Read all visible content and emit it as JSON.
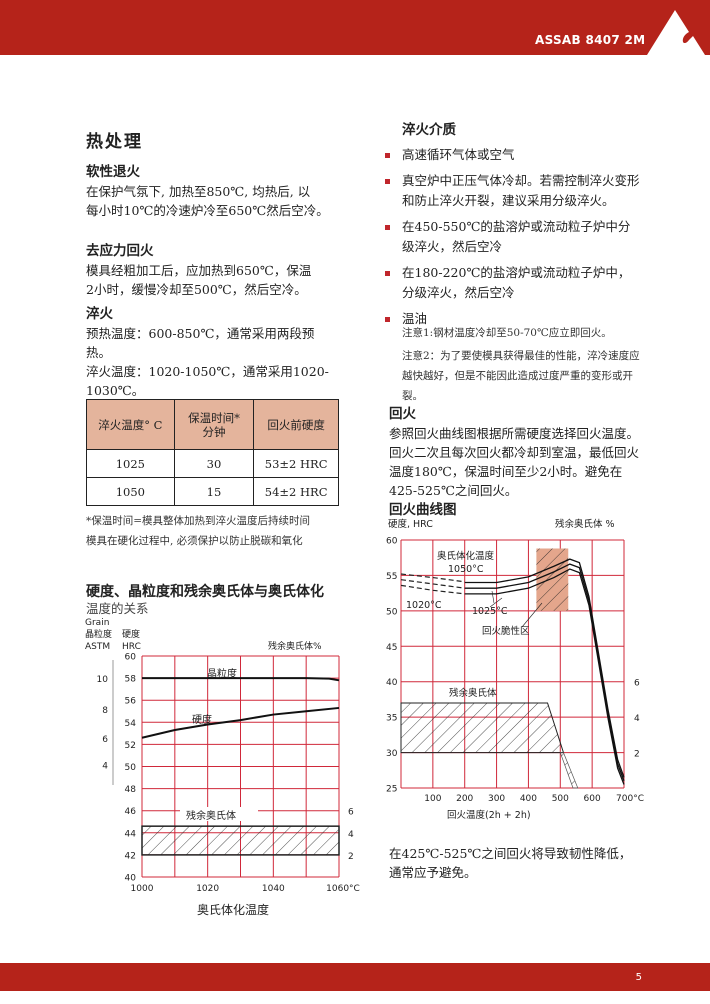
{
  "header": {
    "brand": "ASSAB 8407 2M",
    "accent": "#b5231a"
  },
  "footer": {
    "page_number": "5"
  },
  "left": {
    "title": "热处理",
    "sections": [
      {
        "heading": "软性退火",
        "lines": [
          "在保护气氛下, 加热至850℃, 均热后, 以",
          "每小时10℃的冷速炉冷至650℃然后空冷。"
        ]
      },
      {
        "heading": "去应力回火",
        "lines": [
          "模具经粗加工后，应加热到650℃，保温",
          "2小时，缓慢冷却至500℃，然后空冷。"
        ]
      },
      {
        "heading": "淬火",
        "lines": [
          "预热温度：600-850℃，通常采用两段预",
          "热。",
          "淬火温度：1020-1050℃，通常采用1020-",
          "1030℃。"
        ]
      }
    ],
    "table": {
      "headers": [
        "淬火温度° C",
        "保温时间*\n分钟",
        "回火前硬度"
      ],
      "rows": [
        [
          "1025",
          "30",
          "53±2 HRC"
        ],
        [
          "1050",
          "15",
          "54±2 HRC"
        ]
      ]
    },
    "footnotes": [
      "*保温时间=模具整体加热到淬火温度后持续时间",
      "模具在硬化过程中, 必须保护以防止脱碳和氧化"
    ],
    "chart_title": [
      "硬度、晶粒度和残余奥氏体与奥氏体化",
      "温度的关系"
    ]
  },
  "right": {
    "media_heading": "淬火介质",
    "media": [
      "高速循环气体或空气",
      "真空炉中正压气体冷却。若需控制淬火变形和防止淬火开裂，建议采用分级淬火。",
      "在450-550℃的盐溶炉或流动粒子炉中分级淬火，然后空冷",
      "在180-220℃的盐溶炉或流动粒子炉中，分级淬火，然后空冷",
      "温油"
    ],
    "notes": [
      "注意1:钢材温度冷却至50-70℃应立即回火。",
      "注意2：为了要使模具获得最佳的性能，淬冷速度应越快越好，但是不能因此造成过度严重的变形或开裂。"
    ],
    "tempering_heading": "回火",
    "tempering_text": "参照回火曲线图根据所需硬度选择回火温度。回火二次且每次回火都冷却到室温，最低回火温度180℃，保温时间至少2小时。避免在425-525℃之间回火。",
    "chart_heading": "回火曲线图",
    "bottom_text": "在425℃-525℃之间回火将导致韧性降低，通常应予避免。"
  },
  "chart_data": [
    {
      "type": "line",
      "xlabel": "奥氏体化温度",
      "xlim": [
        1000,
        1060
      ],
      "x_ticks": [
        "1000",
        "1020",
        "1040",
        "1060°C"
      ],
      "ylabel": [
        "硬度",
        "HRC"
      ],
      "ylim": [
        40,
        60
      ],
      "y_ticks": [
        40,
        42,
        44,
        46,
        48,
        50,
        52,
        54,
        56,
        58,
        60
      ],
      "left_axis_label": [
        "Grain",
        "晶粒度",
        "ASTM"
      ],
      "left_axis_ticks": [
        {
          "label": "10",
          "hrc": 58
        },
        {
          "label": "8",
          "hrc": 55.2
        },
        {
          "label": "6",
          "hrc": 52.6
        },
        {
          "label": "4",
          "hrc": 50.2
        }
      ],
      "right_axis_label": "残余奥氏体%",
      "right_axis_ticks": [
        {
          "label": "6",
          "hrc": 46
        },
        {
          "label": "4",
          "hrc": 44
        },
        {
          "label": "2",
          "hrc": 42
        }
      ],
      "grid": true,
      "grid_color": "#d0283a",
      "series": [
        {
          "name": "晶粒度",
          "x": [
            1000,
            1010,
            1020,
            1030,
            1040,
            1050,
            1057,
            1060
          ],
          "y": [
            58,
            58,
            58,
            58,
            58,
            58,
            57.95,
            57.8
          ]
        },
        {
          "name": "硬度",
          "x": [
            1000,
            1010,
            1020,
            1030,
            1040,
            1050,
            1060
          ],
          "y": [
            52.6,
            53.3,
            53.8,
            54.2,
            54.7,
            55.0,
            55.3
          ]
        }
      ],
      "band": {
        "name": "残余奥氏体",
        "x": [
          1000,
          1060
        ],
        "y": [
          42,
          44.6
        ]
      }
    },
    {
      "type": "line",
      "xlabel": "回火温度(2h + 2h)",
      "xlim": [
        0,
        700
      ],
      "x_ticks": [
        "100",
        "200",
        "300",
        "400",
        "500",
        "600",
        "700°C"
      ],
      "ylabel": "硬度, HRC",
      "ylim": [
        25,
        60
      ],
      "y_ticks": [
        25,
        30,
        35,
        40,
        45,
        50,
        55,
        60
      ],
      "right_axis_label": "残余奥氏体 %",
      "right_axis_ticks": [
        {
          "label": "6",
          "hrc": 40
        },
        {
          "label": "4",
          "hrc": 35
        },
        {
          "label": "2",
          "hrc": 30
        }
      ],
      "grid": true,
      "grid_color": "#d0283a",
      "annotation_title": "奥氏体化温度",
      "series": [
        {
          "name": "1050°C",
          "dashed_x": [
            0,
            100,
            200
          ],
          "dashed_y": [
            55.2,
            54.7,
            54.1
          ],
          "x": [
            200,
            300,
            400,
            480,
            530,
            560,
            590,
            620,
            650,
            680,
            700
          ],
          "y": [
            54,
            54,
            54.8,
            56.3,
            57.3,
            56.8,
            52,
            44,
            36,
            29,
            26.5
          ]
        },
        {
          "name": "1025°C",
          "dashed_x": [
            0,
            100,
            200
          ],
          "dashed_y": [
            54.4,
            53.8,
            53.2
          ],
          "x": [
            200,
            300,
            400,
            480,
            530,
            560,
            590,
            620,
            650,
            680,
            700
          ],
          "y": [
            53.2,
            53.2,
            54,
            55.5,
            56.6,
            56.1,
            51.4,
            43.4,
            35.4,
            28.4,
            26
          ]
        },
        {
          "name": "1020°C",
          "dashed_x": [
            0,
            100,
            200
          ],
          "dashed_y": [
            53.6,
            52.9,
            52.4
          ],
          "x": [
            200,
            300,
            400,
            480,
            530,
            560,
            590,
            620,
            650,
            680,
            700
          ],
          "y": [
            52.4,
            52.4,
            53.2,
            54.7,
            55.9,
            55.4,
            50.8,
            42.8,
            34.8,
            27.8,
            25.5
          ]
        }
      ],
      "brittle_zone": {
        "name": "回火脆性区",
        "x": [
          425,
          525
        ],
        "y": [
          50,
          58.8
        ],
        "color": "#e4a68c"
      },
      "retained_austenite": {
        "name": "残余奥氏体",
        "x": [
          0,
          460,
          510,
          555
        ],
        "y": [
          37,
          37,
          30,
          25
        ]
      }
    }
  ]
}
